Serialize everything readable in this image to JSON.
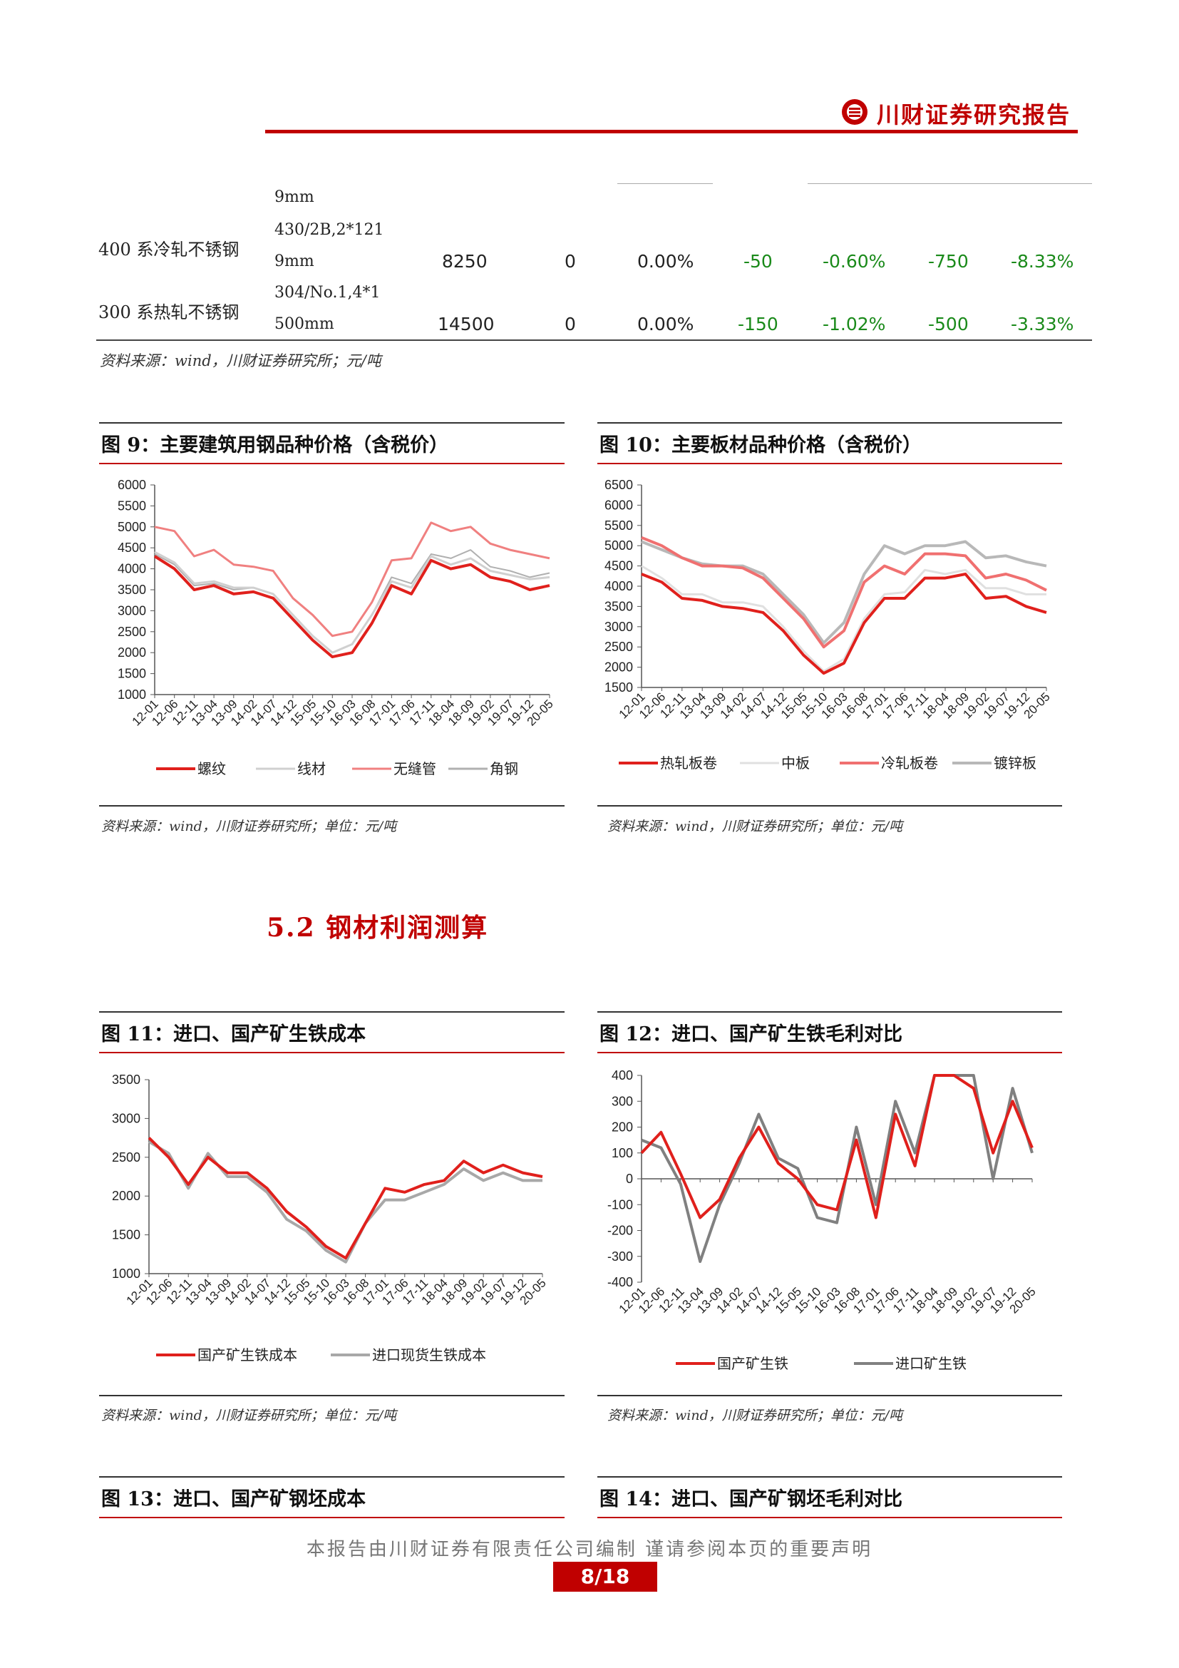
{
  "header": {
    "title": "川财证券研究报告"
  },
  "table": {
    "row0": {
      "spec_tail": "9mm"
    },
    "row1": {
      "name": "400 系冷轧不锈钢",
      "spec_a": "430/2B,2*121",
      "spec_b": "9mm",
      "price": "8250",
      "chg": "0",
      "chg_pct": "0.00%",
      "w": "-50",
      "w_pct": "-0.60%",
      "m": "-750",
      "m_pct": "-8.33%"
    },
    "row2": {
      "name": "300 系热轧不锈钢",
      "spec_a": "304/No.1,4*1",
      "spec_b": "500mm",
      "price": "14500",
      "chg": "0",
      "chg_pct": "0.00%",
      "w": "-150",
      "w_pct": "-1.02%",
      "m": "-500",
      "m_pct": "-3.33%"
    },
    "source": "资料来源：wind，川财证券研究所；元/吨"
  },
  "fig9": {
    "title": "图 9：主要建筑用钢品种价格（含税价）",
    "source": "资料来源：wind，川财证券研究所；单位：元/吨"
  },
  "fig10": {
    "title": "图 10：主要板材品种价格（含税价）",
    "source": "资料来源：wind，川财证券研究所；单位：元/吨"
  },
  "section": {
    "title": "5.2 钢材利润测算"
  },
  "fig11": {
    "title": "图 11：进口、国产矿生铁成本",
    "source": "资料来源：wind，川财证券研究所；单位：元/吨"
  },
  "fig12": {
    "title": "图 12：进口、国产矿生铁毛利对比",
    "source": "资料来源：wind，川财证券研究所；单位：元/吨"
  },
  "fig13": {
    "title": "图 13：进口、国产矿钢坯成本"
  },
  "fig14": {
    "title": "图 14：进口、国产矿钢坯毛利对比"
  },
  "footer": {
    "note": "本报告由川财证券有限责任公司编制 谨请参阅本页的重要声明",
    "page": "8/18"
  },
  "chart_data": [
    {
      "id": "fig9",
      "type": "line",
      "x": [
        "12-01",
        "12-06",
        "12-11",
        "13-04",
        "13-09",
        "14-02",
        "14-07",
        "14-12",
        "15-05",
        "15-10",
        "16-03",
        "16-08",
        "17-01",
        "17-06",
        "17-11",
        "18-04",
        "18-09",
        "19-02",
        "19-07",
        "19-12",
        "20-05"
      ],
      "ylim": [
        1000,
        6000
      ],
      "yticks": [
        1000,
        1500,
        2000,
        2500,
        3000,
        3500,
        4000,
        4500,
        5000,
        5500,
        6000
      ],
      "series": [
        {
          "name": "螺纹",
          "color": "#e0201c",
          "width": 4,
          "values": [
            4300,
            4000,
            3500,
            3600,
            3400,
            3450,
            3300,
            2800,
            2300,
            1900,
            2000,
            2700,
            3600,
            3400,
            4200,
            4000,
            4100,
            3800,
            3700,
            3500,
            3600
          ]
        },
        {
          "name": "线材",
          "color": "#d0d0d0",
          "width": 3,
          "values": [
            4400,
            4150,
            3650,
            3700,
            3550,
            3550,
            3400,
            2900,
            2400,
            2000,
            2200,
            2900,
            3700,
            3550,
            4300,
            4100,
            4250,
            3950,
            3850,
            3750,
            3800
          ]
        },
        {
          "name": "无缝管",
          "color": "#f08080",
          "width": 3,
          "values": [
            5000,
            4900,
            4300,
            4450,
            4100,
            4050,
            3950,
            3300,
            2900,
            2400,
            2500,
            3200,
            4200,
            4250,
            5100,
            4900,
            5000,
            4600,
            4450,
            4350,
            4250
          ]
        },
        {
          "name": "角钢",
          "color": "#b0b0b0",
          "width": 2,
          "values": [
            4350,
            4100,
            3600,
            3650,
            3500,
            3550,
            3400,
            2900,
            2400,
            2000,
            2200,
            2900,
            3800,
            3650,
            4350,
            4250,
            4450,
            4050,
            3950,
            3800,
            3900
          ]
        }
      ]
    },
    {
      "id": "fig10",
      "type": "line",
      "x": [
        "12-01",
        "12-06",
        "12-11",
        "13-04",
        "13-09",
        "14-02",
        "14-07",
        "14-12",
        "15-05",
        "15-10",
        "16-03",
        "16-08",
        "17-01",
        "17-06",
        "17-11",
        "18-04",
        "18-09",
        "19-02",
        "19-07",
        "19-12",
        "20-05"
      ],
      "ylim": [
        1500,
        6500
      ],
      "yticks": [
        1500,
        2000,
        2500,
        3000,
        3500,
        4000,
        4500,
        5000,
        5500,
        6000,
        6500
      ],
      "series": [
        {
          "name": "热轧板卷",
          "color": "#e0201c",
          "width": 4,
          "values": [
            4300,
            4100,
            3700,
            3650,
            3500,
            3450,
            3350,
            2900,
            2300,
            1850,
            2100,
            3100,
            3700,
            3700,
            4200,
            4200,
            4300,
            3700,
            3750,
            3500,
            3350
          ]
        },
        {
          "name": "中板",
          "color": "#e0e0e0",
          "width": 3,
          "values": [
            4500,
            4200,
            3800,
            3800,
            3600,
            3600,
            3500,
            3000,
            2400,
            1900,
            2200,
            3200,
            3800,
            3850,
            4400,
            4300,
            4400,
            3950,
            3950,
            3800,
            3800
          ]
        },
        {
          "name": "冷轧板卷",
          "color": "#f07070",
          "width": 4,
          "values": [
            5200,
            5000,
            4700,
            4500,
            4500,
            4450,
            4200,
            3700,
            3200,
            2500,
            2900,
            4100,
            4500,
            4300,
            4800,
            4800,
            4750,
            4200,
            4300,
            4150,
            3900
          ]
        },
        {
          "name": "镀锌板",
          "color": "#b8b8b8",
          "width": 4,
          "values": [
            5100,
            4900,
            4700,
            4550,
            4500,
            4500,
            4300,
            3800,
            3300,
            2600,
            3100,
            4300,
            5000,
            4800,
            5000,
            5000,
            5100,
            4700,
            4750,
            4600,
            4500
          ]
        }
      ]
    },
    {
      "id": "fig11",
      "type": "line",
      "x": [
        "12-01",
        "12-06",
        "12-11",
        "13-04",
        "13-09",
        "14-02",
        "14-07",
        "14-12",
        "15-05",
        "15-10",
        "16-03",
        "16-08",
        "17-01",
        "17-06",
        "17-11",
        "18-04",
        "18-09",
        "19-02",
        "19-07",
        "19-12",
        "20-05"
      ],
      "ylim": [
        1000,
        3500
      ],
      "yticks": [
        1000,
        1500,
        2000,
        2500,
        3000,
        3500
      ],
      "series": [
        {
          "name": "国产矿生铁成本",
          "color": "#e0201c",
          "width": 4,
          "values": [
            2750,
            2500,
            2150,
            2500,
            2300,
            2300,
            2100,
            1800,
            1600,
            1350,
            1200,
            1650,
            2100,
            2050,
            2150,
            2200,
            2450,
            2300,
            2400,
            2300,
            2250
          ]
        },
        {
          "name": "进口现货生铁成本",
          "color": "#a8a8a8",
          "width": 4,
          "values": [
            2700,
            2550,
            2100,
            2550,
            2250,
            2250,
            2050,
            1700,
            1550,
            1300,
            1150,
            1650,
            1950,
            1950,
            2050,
            2150,
            2350,
            2200,
            2300,
            2200,
            2200
          ]
        }
      ]
    },
    {
      "id": "fig12",
      "type": "line",
      "x": [
        "12-01",
        "12-06",
        "12-11",
        "13-04",
        "13-09",
        "14-02",
        "14-07",
        "14-12",
        "15-05",
        "15-10",
        "16-03",
        "16-08",
        "17-01",
        "17-06",
        "17-11",
        "18-04",
        "18-09",
        "19-02",
        "19-07",
        "19-12",
        "20-05"
      ],
      "ylim": [
        -400,
        400
      ],
      "yticks": [
        -400,
        -300,
        -200,
        -100,
        0,
        100,
        200,
        300,
        400
      ],
      "series": [
        {
          "name": "国产矿生铁",
          "color": "#e0201c",
          "width": 4,
          "values": [
            100,
            180,
            20,
            -150,
            -80,
            80,
            200,
            60,
            0,
            -100,
            -120,
            150,
            -150,
            250,
            50,
            400,
            400,
            350,
            100,
            300,
            120
          ]
        },
        {
          "name": "进口矿生铁",
          "color": "#808080",
          "width": 4,
          "values": [
            150,
            120,
            -20,
            -320,
            -100,
            60,
            250,
            80,
            40,
            -150,
            -170,
            200,
            -100,
            300,
            100,
            400,
            400,
            400,
            0,
            350,
            100
          ]
        }
      ]
    }
  ]
}
